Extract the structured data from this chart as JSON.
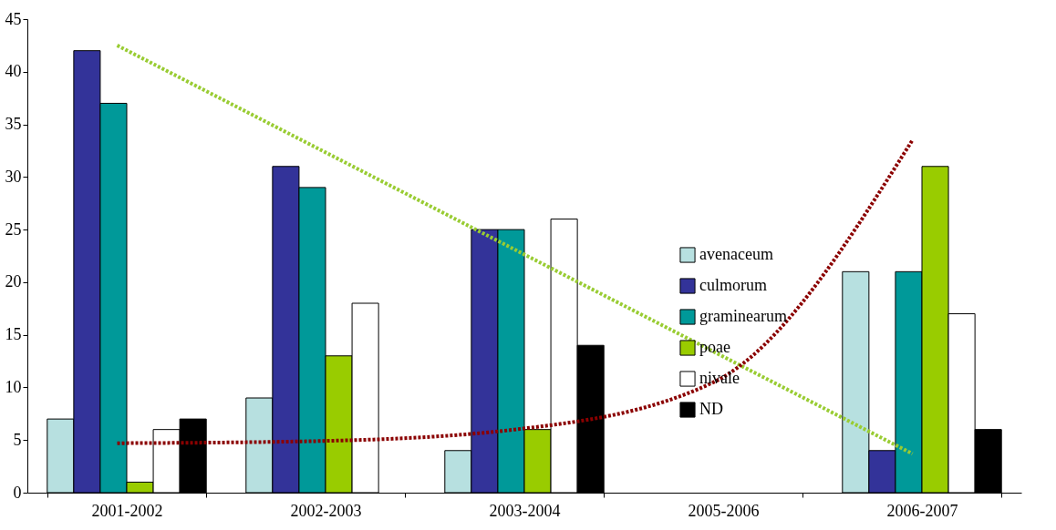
{
  "chart_data": {
    "type": "bar",
    "categories": [
      "2001-2002",
      "2002-2003",
      "2003-2004",
      "2005-2006",
      "2006-2007"
    ],
    "series": [
      {
        "name": "avenaceum",
        "color": "#b7e0e0",
        "values": [
          7,
          9,
          4,
          null,
          21
        ]
      },
      {
        "name": "culmorum",
        "color": "#333399",
        "values": [
          42,
          31,
          25,
          null,
          4
        ]
      },
      {
        "name": "graminearum",
        "color": "#009999",
        "values": [
          37,
          29,
          25,
          null,
          21
        ]
      },
      {
        "name": "poae",
        "color": "#99cc00",
        "values": [
          1,
          13,
          6,
          null,
          31
        ]
      },
      {
        "name": "nivale",
        "color": "#ffffff",
        "values": [
          6,
          18,
          26,
          null,
          17
        ]
      },
      {
        "name": "ND",
        "color": "#000000",
        "values": [
          7,
          null,
          14,
          null,
          6
        ]
      },
      {
        "type": "line",
        "color": "#99cc33",
        "line_style": "dotted",
        "x": [
          "2001-2002",
          "2006-2007"
        ],
        "values": [
          42.5,
          3.7
        ]
      },
      {
        "type": "line",
        "color": "#8b0000",
        "line_style": "dotted",
        "x": [
          "2001-2002",
          "2002-2003",
          "2003-2004",
          "2005-2006",
          "2006-2007"
        ],
        "values": [
          4.7,
          4.9,
          6,
          10.5,
          33.5
        ]
      }
    ],
    "ylim": [
      0,
      45
    ],
    "yticks": [
      0,
      5,
      10,
      15,
      20,
      25,
      30,
      35,
      40,
      45
    ],
    "grid": false,
    "legend": "right"
  }
}
